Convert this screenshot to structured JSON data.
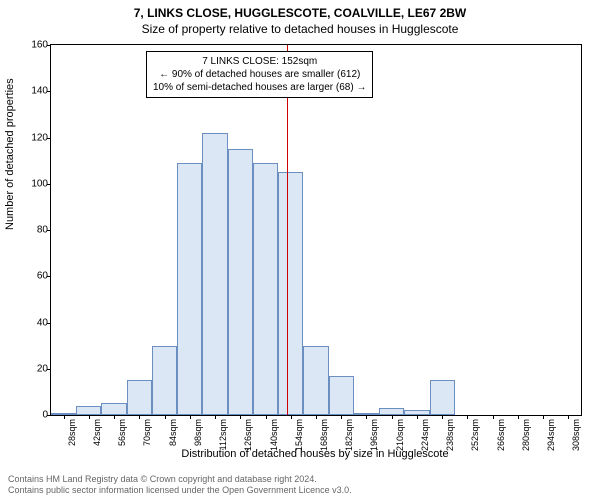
{
  "title_main": "7, LINKS CLOSE, HUGGLESCOTE, COALVILLE, LE67 2BW",
  "title_sub": "Size of property relative to detached houses in Hugglescote",
  "ylabel": "Number of detached properties",
  "xlabel": "Distribution of detached houses by size in Hugglescote",
  "footer_line1": "Contains HM Land Registry data © Crown copyright and database right 2024.",
  "footer_line2": "Contains public sector information licensed under the Open Government Licence v3.0.",
  "chart": {
    "type": "histogram",
    "ylim": [
      0,
      160
    ],
    "ytick_step": 20,
    "xtick_start": 28,
    "xtick_step": 14,
    "xtick_count": 21,
    "bar_fill": "#dbe7f5",
    "bar_border": "#6a8fc0",
    "background": "#ffffff",
    "border": "#000000",
    "bins": [
      {
        "x": 21,
        "count": 1
      },
      {
        "x": 35,
        "count": 4
      },
      {
        "x": 49,
        "count": 5
      },
      {
        "x": 63,
        "count": 15
      },
      {
        "x": 77,
        "count": 30
      },
      {
        "x": 91,
        "count": 109
      },
      {
        "x": 105,
        "count": 122
      },
      {
        "x": 119,
        "count": 115
      },
      {
        "x": 133,
        "count": 109
      },
      {
        "x": 147,
        "count": 105
      },
      {
        "x": 161,
        "count": 30
      },
      {
        "x": 175,
        "count": 17
      },
      {
        "x": 189,
        "count": 1
      },
      {
        "x": 203,
        "count": 3
      },
      {
        "x": 217,
        "count": 2
      },
      {
        "x": 231,
        "count": 15
      },
      {
        "x": 245,
        "count": 0
      },
      {
        "x": 259,
        "count": 0
      },
      {
        "x": 273,
        "count": 0
      },
      {
        "x": 287,
        "count": 0
      },
      {
        "x": 301,
        "count": 0
      }
    ],
    "x_domain_start": 21,
    "x_domain_end": 315,
    "reference_line": {
      "x": 152,
      "color": "#cc0000"
    },
    "annotation": {
      "line1": "7 LINKS CLOSE: 152sqm",
      "line2": "← 90% of detached houses are smaller (612)",
      "line3": "10% of semi-detached houses are larger (68) →"
    }
  }
}
